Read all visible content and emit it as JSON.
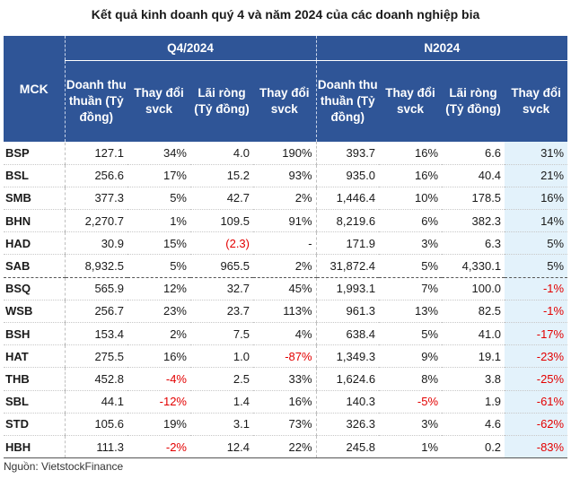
{
  "title": "Kết quả kinh doanh quý 4 và năm 2024 của các doanh nghiệp bia",
  "header": {
    "mck": "MCK",
    "group_q": "Q4/2024",
    "group_n": "N2024",
    "col_revenue": "Doanh thu thuần (Tỷ đồng)",
    "col_change": "Thay đổi svck",
    "col_profit": "Lãi ròng (Tỷ đồng)",
    "col_change2": "Thay đổi svck"
  },
  "rows": [
    {
      "mck": "BSP",
      "q_rev": "127.1",
      "q_rev_chg": "34%",
      "q_np": "4.0",
      "q_np_chg": "190%",
      "n_rev": "393.7",
      "n_rev_chg": "16%",
      "n_np": "6.6",
      "n_np_chg": "31%"
    },
    {
      "mck": "BSL",
      "q_rev": "256.6",
      "q_rev_chg": "17%",
      "q_np": "15.2",
      "q_np_chg": "93%",
      "n_rev": "935.0",
      "n_rev_chg": "16%",
      "n_np": "40.4",
      "n_np_chg": "21%"
    },
    {
      "mck": "SMB",
      "q_rev": "377.3",
      "q_rev_chg": "5%",
      "q_np": "42.7",
      "q_np_chg": "2%",
      "n_rev": "1,446.4",
      "n_rev_chg": "10%",
      "n_np": "178.5",
      "n_np_chg": "16%"
    },
    {
      "mck": "BHN",
      "q_rev": "2,270.7",
      "q_rev_chg": "1%",
      "q_np": "109.5",
      "q_np_chg": "91%",
      "n_rev": "8,219.6",
      "n_rev_chg": "6%",
      "n_np": "382.3",
      "n_np_chg": "14%"
    },
    {
      "mck": "HAD",
      "q_rev": "30.9",
      "q_rev_chg": "15%",
      "q_np": "(2.3)",
      "q_np_chg": "-",
      "n_rev": "171.9",
      "n_rev_chg": "3%",
      "n_np": "6.3",
      "n_np_chg": "5%"
    },
    {
      "mck": "SAB",
      "q_rev": "8,932.5",
      "q_rev_chg": "5%",
      "q_np": "965.5",
      "q_np_chg": "2%",
      "n_rev": "31,872.4",
      "n_rev_chg": "5%",
      "n_np": "4,330.1",
      "n_np_chg": "5%"
    },
    {
      "mck": "BSQ",
      "q_rev": "565.9",
      "q_rev_chg": "12%",
      "q_np": "32.7",
      "q_np_chg": "45%",
      "n_rev": "1,993.1",
      "n_rev_chg": "7%",
      "n_np": "100.0",
      "n_np_chg": "-1%"
    },
    {
      "mck": "WSB",
      "q_rev": "256.7",
      "q_rev_chg": "23%",
      "q_np": "23.7",
      "q_np_chg": "113%",
      "n_rev": "961.3",
      "n_rev_chg": "13%",
      "n_np": "82.5",
      "n_np_chg": "-1%"
    },
    {
      "mck": "BSH",
      "q_rev": "153.4",
      "q_rev_chg": "2%",
      "q_np": "7.5",
      "q_np_chg": "4%",
      "n_rev": "638.4",
      "n_rev_chg": "5%",
      "n_np": "41.0",
      "n_np_chg": "-17%"
    },
    {
      "mck": "HAT",
      "q_rev": "275.5",
      "q_rev_chg": "16%",
      "q_np": "1.0",
      "q_np_chg": "-87%",
      "n_rev": "1,349.3",
      "n_rev_chg": "9%",
      "n_np": "19.1",
      "n_np_chg": "-23%"
    },
    {
      "mck": "THB",
      "q_rev": "452.8",
      "q_rev_chg": "-4%",
      "q_np": "2.5",
      "q_np_chg": "33%",
      "n_rev": "1,624.6",
      "n_rev_chg": "8%",
      "n_np": "3.8",
      "n_np_chg": "-25%"
    },
    {
      "mck": "SBL",
      "q_rev": "44.1",
      "q_rev_chg": "-12%",
      "q_np": "1.4",
      "q_np_chg": "16%",
      "n_rev": "140.3",
      "n_rev_chg": "-5%",
      "n_np": "1.9",
      "n_np_chg": "-61%"
    },
    {
      "mck": "STD",
      "q_rev": "105.6",
      "q_rev_chg": "19%",
      "q_np": "3.1",
      "q_np_chg": "73%",
      "n_rev": "326.3",
      "n_rev_chg": "3%",
      "n_np": "4.6",
      "n_np_chg": "-62%"
    },
    {
      "mck": "HBH",
      "q_rev": "111.3",
      "q_rev_chg": "-2%",
      "q_np": "12.4",
      "q_np_chg": "22%",
      "n_rev": "245.8",
      "n_rev_chg": "1%",
      "n_np": "0.2",
      "n_np_chg": "-83%"
    }
  ],
  "source": "Nguồn: VietstockFinance",
  "colors": {
    "header_bg": "#2f5597",
    "header_text": "#ffffff",
    "negative": "#e30000",
    "highlight_bg": "#e3f2fb"
  }
}
